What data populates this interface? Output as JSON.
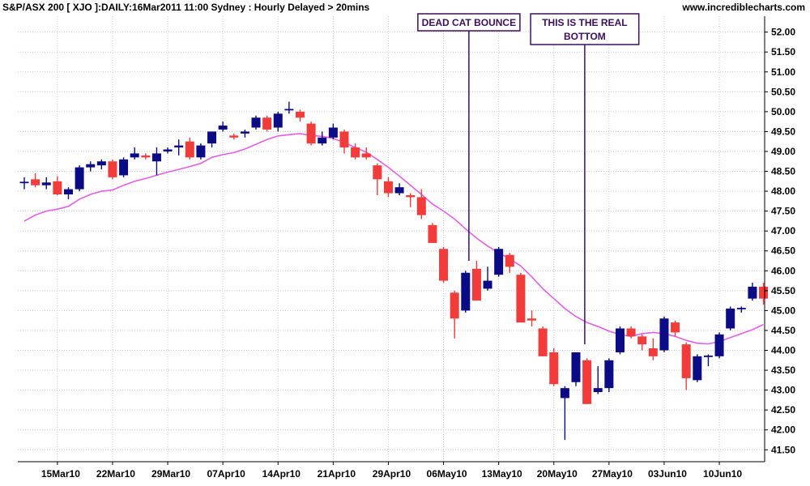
{
  "header": {
    "title": "S&P/ASX 200 [ XJO ]:DAILY:16Mar2011 11:00 Sydney : Hourly Delayed > 20mins",
    "brand": "www.incrediblecharts.com"
  },
  "chart_data": {
    "type": "candlestick",
    "title": "S&P/ASX 200 [ XJO ]:DAILY:16Mar2011 11:00 Sydney : Hourly Delayed > 20mins",
    "ylim": [
      41.2,
      52.4
    ],
    "y_ticks": [
      "41.50",
      "42.00",
      "42.50",
      "43.00",
      "43.50",
      "44.00",
      "44.50",
      "45.00",
      "45.50",
      "46.00",
      "46.50",
      "47.00",
      "47.50",
      "48.00",
      "48.50",
      "49.00",
      "49.50",
      "50.00",
      "50.50",
      "51.00",
      "51.50",
      "52.00"
    ],
    "x_ticks": [
      {
        "label": "15Mar10",
        "index": 3
      },
      {
        "label": "22Mar10",
        "index": 8
      },
      {
        "label": "29Mar10",
        "index": 13
      },
      {
        "label": "07Apr10",
        "index": 18
      },
      {
        "label": "14Apr10",
        "index": 23
      },
      {
        "label": "21Apr10",
        "index": 28
      },
      {
        "label": "29Apr10",
        "index": 33
      },
      {
        "label": "06May10",
        "index": 38
      },
      {
        "label": "13May10",
        "index": 43
      },
      {
        "label": "20May10",
        "index": 48
      },
      {
        "label": "27May10",
        "index": 53
      },
      {
        "label": "03Jun10",
        "index": 58
      },
      {
        "label": "10Jun10",
        "index": 63
      }
    ],
    "grid": true,
    "colors": {
      "up": "#0b0b85",
      "down": "#f23c3c",
      "ma": "#e65ee6",
      "annotation": "#3d0f5e"
    },
    "candles": [
      {
        "o": 48.22,
        "h": 48.35,
        "l": 48.05,
        "c": 48.22
      },
      {
        "o": 48.3,
        "h": 48.45,
        "l": 48.1,
        "c": 48.15
      },
      {
        "o": 48.15,
        "h": 48.35,
        "l": 48.05,
        "c": 48.22
      },
      {
        "o": 48.25,
        "h": 48.38,
        "l": 47.9,
        "c": 47.92
      },
      {
        "o": 47.92,
        "h": 48.1,
        "l": 47.8,
        "c": 48.05
      },
      {
        "o": 48.05,
        "h": 48.65,
        "l": 48.0,
        "c": 48.6
      },
      {
        "o": 48.6,
        "h": 48.75,
        "l": 48.5,
        "c": 48.68
      },
      {
        "o": 48.65,
        "h": 48.8,
        "l": 48.55,
        "c": 48.75
      },
      {
        "o": 48.75,
        "h": 48.8,
        "l": 48.3,
        "c": 48.35
      },
      {
        "o": 48.4,
        "h": 48.85,
        "l": 48.35,
        "c": 48.8
      },
      {
        "o": 48.85,
        "h": 49.1,
        "l": 48.8,
        "c": 48.95
      },
      {
        "o": 48.9,
        "h": 48.95,
        "l": 48.8,
        "c": 48.85
      },
      {
        "o": 48.75,
        "h": 49.1,
        "l": 48.4,
        "c": 48.95
      },
      {
        "o": 49.0,
        "h": 49.1,
        "l": 48.95,
        "c": 49.05
      },
      {
        "o": 49.1,
        "h": 49.3,
        "l": 48.9,
        "c": 49.15
      },
      {
        "o": 49.25,
        "h": 49.35,
        "l": 48.8,
        "c": 48.85
      },
      {
        "o": 48.85,
        "h": 49.2,
        "l": 48.8,
        "c": 49.15
      },
      {
        "o": 49.2,
        "h": 49.5,
        "l": 49.1,
        "c": 49.5
      },
      {
        "o": 49.55,
        "h": 49.75,
        "l": 49.5,
        "c": 49.65
      },
      {
        "o": 49.4,
        "h": 49.45,
        "l": 49.3,
        "c": 49.35
      },
      {
        "o": 49.45,
        "h": 49.55,
        "l": 49.35,
        "c": 49.5
      },
      {
        "o": 49.6,
        "h": 49.9,
        "l": 49.55,
        "c": 49.85
      },
      {
        "o": 49.85,
        "h": 49.9,
        "l": 49.5,
        "c": 49.55
      },
      {
        "o": 49.6,
        "h": 50.0,
        "l": 49.5,
        "c": 49.95
      },
      {
        "o": 50.05,
        "h": 50.25,
        "l": 49.95,
        "c": 50.05
      },
      {
        "o": 50.0,
        "h": 50.05,
        "l": 49.75,
        "c": 49.85
      },
      {
        "o": 49.7,
        "h": 49.75,
        "l": 49.15,
        "c": 49.2
      },
      {
        "o": 49.2,
        "h": 49.5,
        "l": 49.15,
        "c": 49.35
      },
      {
        "o": 49.35,
        "h": 49.7,
        "l": 49.3,
        "c": 49.6
      },
      {
        "o": 49.5,
        "h": 49.55,
        "l": 48.95,
        "c": 49.1
      },
      {
        "o": 49.1,
        "h": 49.2,
        "l": 48.8,
        "c": 48.85
      },
      {
        "o": 48.95,
        "h": 49.1,
        "l": 48.8,
        "c": 48.85
      },
      {
        "o": 48.65,
        "h": 48.7,
        "l": 47.9,
        "c": 48.3
      },
      {
        "o": 48.25,
        "h": 48.35,
        "l": 47.85,
        "c": 47.95
      },
      {
        "o": 47.95,
        "h": 48.2,
        "l": 47.9,
        "c": 48.1
      },
      {
        "o": 47.9,
        "h": 47.95,
        "l": 47.6,
        "c": 47.85
      },
      {
        "o": 47.85,
        "h": 48.05,
        "l": 47.3,
        "c": 47.4
      },
      {
        "o": 47.15,
        "h": 47.2,
        "l": 46.7,
        "c": 46.7
      },
      {
        "o": 46.55,
        "h": 46.6,
        "l": 45.7,
        "c": 45.75
      },
      {
        "o": 45.45,
        "h": 45.5,
        "l": 44.3,
        "c": 44.8
      },
      {
        "o": 45.0,
        "h": 46.0,
        "l": 44.95,
        "c": 45.95
      },
      {
        "o": 46.05,
        "h": 46.25,
        "l": 45.25,
        "c": 45.25
      },
      {
        "o": 45.55,
        "h": 46.1,
        "l": 45.5,
        "c": 45.75
      },
      {
        "o": 45.9,
        "h": 46.6,
        "l": 45.85,
        "c": 46.55
      },
      {
        "o": 46.4,
        "h": 46.45,
        "l": 45.95,
        "c": 46.1
      },
      {
        "o": 45.9,
        "h": 45.95,
        "l": 44.7,
        "c": 44.7
      },
      {
        "o": 44.8,
        "h": 45.0,
        "l": 44.6,
        "c": 44.75
      },
      {
        "o": 44.55,
        "h": 44.6,
        "l": 43.85,
        "c": 43.85
      },
      {
        "o": 43.95,
        "h": 44.05,
        "l": 43.1,
        "c": 43.15
      },
      {
        "o": 42.8,
        "h": 43.1,
        "l": 41.75,
        "c": 43.05
      },
      {
        "o": 43.2,
        "h": 43.95,
        "l": 43.1,
        "c": 43.95
      },
      {
        "o": 43.75,
        "h": 43.8,
        "l": 42.65,
        "c": 42.65
      },
      {
        "o": 42.95,
        "h": 43.6,
        "l": 42.9,
        "c": 43.05
      },
      {
        "o": 43.05,
        "h": 43.8,
        "l": 42.95,
        "c": 43.75
      },
      {
        "o": 43.95,
        "h": 44.6,
        "l": 43.9,
        "c": 44.55
      },
      {
        "o": 44.55,
        "h": 44.6,
        "l": 44.3,
        "c": 44.35
      },
      {
        "o": 44.35,
        "h": 44.4,
        "l": 44.0,
        "c": 44.15
      },
      {
        "o": 44.05,
        "h": 44.3,
        "l": 43.75,
        "c": 43.85
      },
      {
        "o": 44.0,
        "h": 44.85,
        "l": 43.95,
        "c": 44.8
      },
      {
        "o": 44.7,
        "h": 44.75,
        "l": 44.35,
        "c": 44.45
      },
      {
        "o": 44.15,
        "h": 44.2,
        "l": 43.0,
        "c": 43.3
      },
      {
        "o": 43.25,
        "h": 43.9,
        "l": 43.2,
        "c": 43.85
      },
      {
        "o": 43.85,
        "h": 43.9,
        "l": 43.6,
        "c": 43.85
      },
      {
        "o": 43.85,
        "h": 44.45,
        "l": 43.8,
        "c": 44.4
      },
      {
        "o": 44.55,
        "h": 45.1,
        "l": 44.5,
        "c": 45.05
      },
      {
        "o": 45.05,
        "h": 45.1,
        "l": 44.95,
        "c": 45.05
      },
      {
        "o": 45.3,
        "h": 45.7,
        "l": 45.25,
        "c": 45.6
      },
      {
        "o": 45.6,
        "h": 45.7,
        "l": 45.15,
        "c": 45.3
      }
    ],
    "moving_average": [
      47.25,
      47.4,
      47.5,
      47.55,
      47.62,
      47.8,
      47.92,
      48.0,
      48.03,
      48.15,
      48.25,
      48.32,
      48.4,
      48.48,
      48.55,
      48.62,
      48.7,
      48.85,
      48.92,
      48.97,
      49.06,
      49.18,
      49.3,
      49.39,
      49.42,
      49.45,
      49.4,
      49.38,
      49.33,
      49.22,
      49.1,
      48.98,
      48.8,
      48.6,
      48.38,
      48.15,
      47.92,
      47.68,
      47.5,
      47.3,
      47.05,
      46.82,
      46.62,
      46.45,
      46.3,
      46.12,
      45.85,
      45.55,
      45.3,
      45.05,
      44.85,
      44.7,
      44.6,
      44.48,
      44.4,
      44.35,
      44.42,
      44.45,
      44.42,
      44.35,
      44.25,
      44.18,
      44.16,
      44.22,
      44.32,
      44.42,
      44.52,
      44.65
    ],
    "annotations": [
      {
        "label": [
          "DEAD CAT BOUNCE"
        ],
        "index": 40.3,
        "price": 46.25
      },
      {
        "label": [
          "THIS IS THE REAL",
          "BOTTOM"
        ],
        "index": 50.8,
        "price": 44.15
      }
    ]
  }
}
